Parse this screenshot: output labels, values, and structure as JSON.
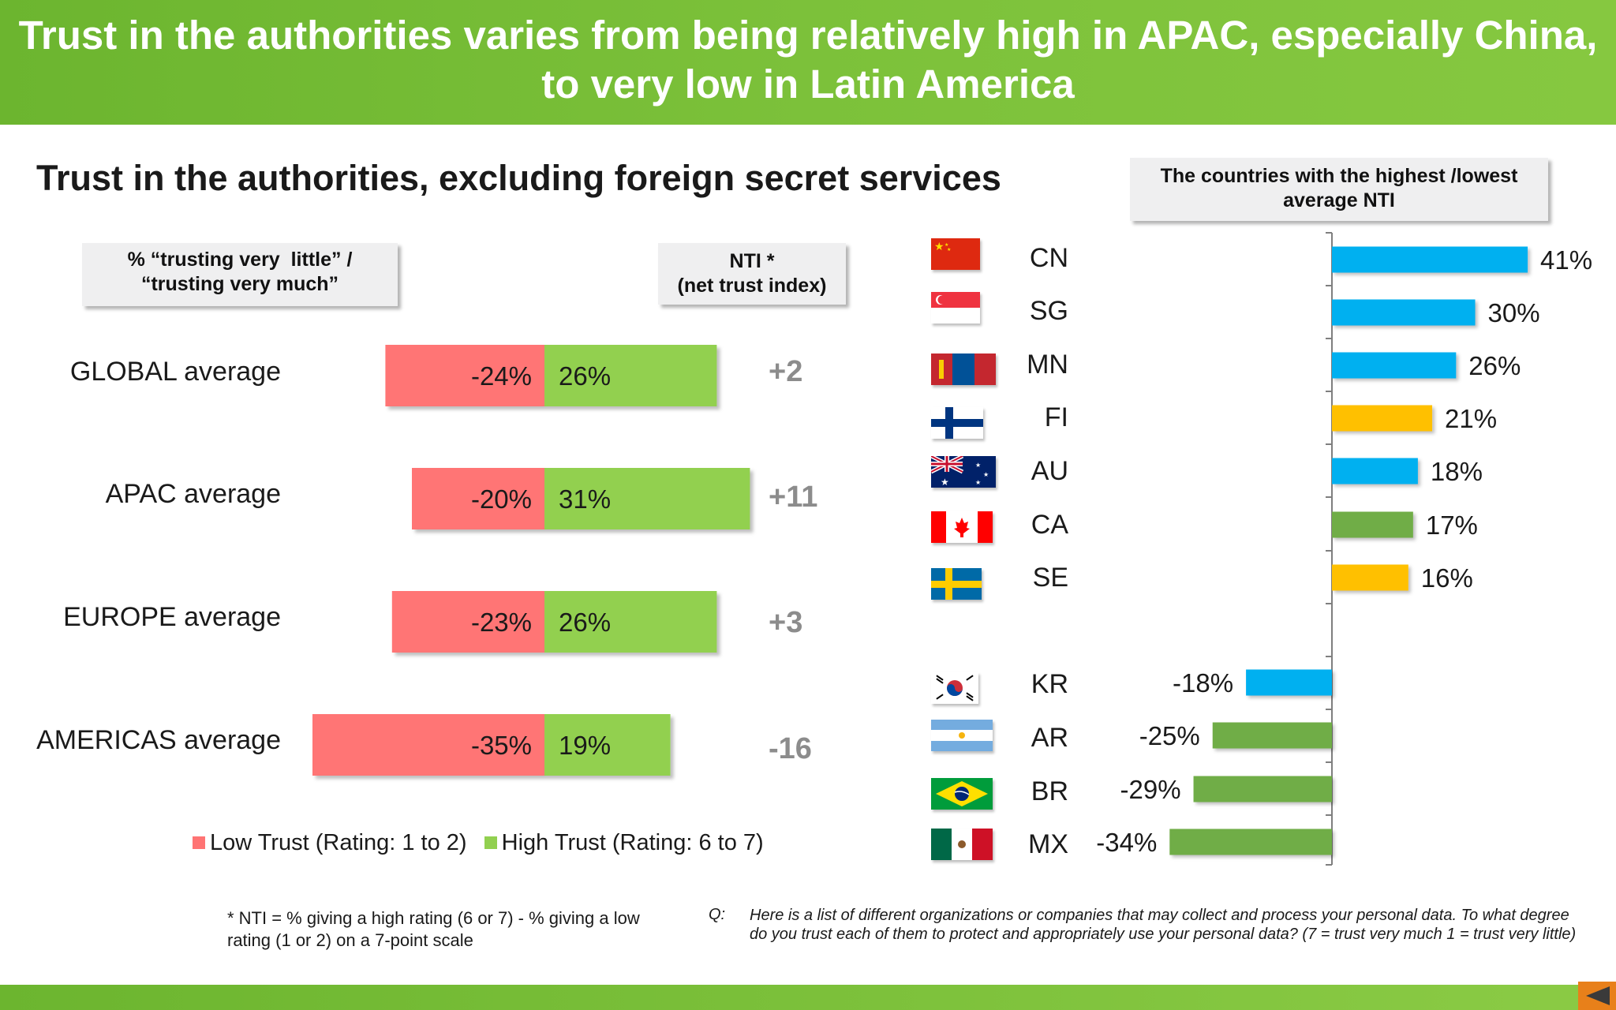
{
  "header": {
    "title_line1": "Trust in the authorities varies from being relatively high in APAC, especially China,",
    "title_line2": "to very low in Latin America"
  },
  "chart_title": "Trust in the authorities, excluding foreign secret services",
  "callouts": {
    "left": "% “trusting very  little” /\n“trusting very much”",
    "nti": "NTI *\n(net trust index)",
    "right": "The countries with the highest /lowest\naverage NTI"
  },
  "colors": {
    "low_trust": "#ff7474",
    "high_trust": "#92d050",
    "apac": "#00b0f0",
    "europe": "#ffc000",
    "americas": "#70ad47",
    "header_green": "#7cc13a"
  },
  "legend": {
    "low": "Low Trust (Rating: 1 to 2)",
    "high": "High Trust (Rating: 6 to 7)"
  },
  "footnote": "* NTI = % giving a high rating (6 or 7) - % giving a low rating (1 or 2) on a 7-point scale",
  "question": {
    "label": "Q:",
    "text": "Here is a list of different organizations or companies that may collect and process your personal data.  To what degree do you trust each of them to protect and appropriately use your personal data? (7 = trust very much 1 = trust very little)"
  },
  "chart_data": [
    {
      "type": "bar",
      "orientation": "horizontal-diverging",
      "categories": [
        "GLOBAL average",
        "APAC average",
        "EUROPE average",
        "AMERICAS average"
      ],
      "series": [
        {
          "name": "Low Trust (Rating: 1 to 2)",
          "values": [
            -24,
            -20,
            -23,
            -35
          ],
          "labels": [
            "-24%",
            "-20%",
            "-23%",
            "-35%"
          ]
        },
        {
          "name": "High Trust (Rating: 6 to 7)",
          "values": [
            26,
            31,
            26,
            19
          ],
          "labels": [
            "26%",
            "31%",
            "26%",
            "19%"
          ]
        }
      ],
      "nti": [
        "+2",
        "+11",
        "+3",
        "-16"
      ],
      "xlim": [
        -40,
        40
      ],
      "grid": false,
      "legend_position": "bottom"
    },
    {
      "type": "bar",
      "orientation": "horizontal",
      "categories": [
        "CN",
        "SG",
        "MN",
        "FI",
        "AU",
        "CA",
        "SE",
        "KR",
        "AR",
        "BR",
        "MX"
      ],
      "values": [
        41,
        30,
        26,
        21,
        18,
        17,
        16,
        -18,
        -25,
        -29,
        -34
      ],
      "labels": [
        "41%",
        "30%",
        "26%",
        "21%",
        "18%",
        "17%",
        "16%",
        "-18%",
        "-25%",
        "-29%",
        "-34%"
      ],
      "regions": [
        "apac",
        "apac",
        "apac",
        "europe",
        "apac",
        "americas",
        "europe",
        "apac",
        "americas",
        "americas",
        "americas"
      ],
      "flags": [
        "flag-china-icon",
        "flag-singapore-icon",
        "flag-mongolia-icon",
        "flag-finland-icon",
        "flag-australia-icon",
        "flag-canada-icon",
        "flag-sweden-icon",
        "flag-south-korea-icon",
        "flag-argentina-icon",
        "flag-brazil-icon",
        "flag-mexico-icon"
      ],
      "xlim": [
        -40,
        45
      ],
      "grid": false
    }
  ]
}
